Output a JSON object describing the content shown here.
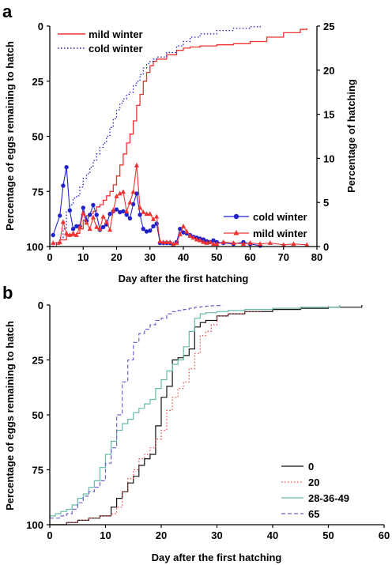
{
  "chart_data": [
    {
      "panel": "a",
      "type": "line",
      "xlabel": "Day after the first hatching",
      "ylabel": "Percentage of eggs remaining to hatch",
      "y2label": "Percentage of hatching",
      "xlim": [
        0,
        80
      ],
      "ylim": [
        100,
        0
      ],
      "y2lim": [
        0,
        25
      ],
      "xticks": [
        "0",
        "10",
        "20",
        "30",
        "40",
        "50",
        "60",
        "70",
        "80"
      ],
      "yticks": [
        "0",
        "25",
        "50",
        "75",
        "100"
      ],
      "y2ticks": [
        "0",
        "5",
        "10",
        "15",
        "20",
        "25"
      ],
      "legend_cumulative": [
        "mild winter",
        "cold winter"
      ],
      "legend_cumulative_position": "top-left",
      "legend_daily": [
        "cold winter",
        "mild winter"
      ],
      "legend_daily_position": "bottom-right",
      "colors": {
        "mild": "#ee3333",
        "cold": "#2222cc"
      },
      "series": [
        {
          "name": "mild winter",
          "kind": "step-cumulative",
          "axis": "left",
          "x": [
            0,
            1,
            2,
            3,
            4,
            5,
            6,
            7,
            8,
            9,
            10,
            11,
            12,
            13,
            14,
            15,
            16,
            17,
            18,
            19,
            20,
            21,
            22,
            23,
            24,
            25,
            26,
            27,
            28,
            29,
            30,
            31,
            32,
            35,
            38,
            40,
            42,
            45,
            50,
            55,
            60,
            65,
            70,
            75,
            77
          ],
          "y": [
            100,
            100,
            99,
            97,
            97,
            95,
            95,
            95,
            94,
            92,
            88,
            86,
            85,
            84,
            82,
            81,
            79,
            77,
            75,
            72,
            68,
            63,
            58,
            53,
            49,
            43,
            36,
            31,
            25,
            21,
            18,
            16,
            15,
            13,
            11,
            10,
            9.5,
            9,
            8.5,
            8,
            7,
            5,
            3,
            1.5,
            1
          ]
        },
        {
          "name": "cold winter",
          "kind": "step-cumulative",
          "axis": "left",
          "x": [
            0,
            1,
            2,
            3,
            4,
            5,
            6,
            7,
            8,
            9,
            10,
            11,
            12,
            13,
            14,
            15,
            16,
            17,
            18,
            19,
            20,
            21,
            22,
            23,
            24,
            25,
            26,
            27,
            28,
            29,
            30,
            31,
            32,
            35,
            38,
            40,
            42,
            45,
            50,
            55,
            60,
            63
          ],
          "y": [
            100,
            99,
            98,
            96,
            92,
            84,
            81,
            78,
            77,
            73,
            69,
            67,
            64,
            61,
            58,
            55,
            53,
            50,
            46,
            42,
            38,
            35,
            33,
            31,
            30,
            27,
            25,
            22,
            19,
            17,
            16,
            15,
            14,
            12,
            9,
            7,
            5,
            3.5,
            2,
            1,
            0.3,
            0
          ]
        },
        {
          "name": "cold winter",
          "kind": "daily-markers",
          "marker": "circle",
          "axis": "right",
          "x": [
            1,
            3,
            4,
            5,
            6,
            7,
            8,
            9,
            10,
            11,
            12,
            13,
            14,
            15,
            16,
            17,
            18,
            19,
            20,
            21,
            22,
            23,
            24,
            25,
            26,
            27,
            28,
            29,
            30,
            31,
            32,
            33,
            34,
            35,
            36,
            37,
            38,
            39,
            40,
            41,
            42,
            43,
            44,
            45,
            46,
            47,
            48,
            49,
            50,
            52,
            55,
            58,
            60,
            63
          ],
          "y": [
            1.3,
            3.5,
            6.9,
            9.0,
            4.1,
            2.0,
            2.3,
            2.3,
            4.4,
            2.9,
            3.6,
            4.7,
            3.6,
            1.9,
            2.2,
            2.5,
            3.7,
            4.0,
            4.2,
            3.9,
            4.0,
            3.6,
            3.2,
            4.8,
            6.0,
            3.6,
            2.0,
            1.7,
            1.8,
            2.3,
            2.6,
            0.4,
            0.4,
            0.4,
            0.4,
            0.2,
            0.5,
            2.0,
            1.6,
            1.5,
            1.3,
            1.1,
            1.0,
            0.9,
            0.8,
            0.6,
            0.5,
            0.7,
            0.5,
            0.4,
            0.3,
            0.5,
            0.3,
            0.1
          ]
        },
        {
          "name": "mild winter",
          "kind": "daily-markers",
          "marker": "triangle",
          "axis": "right",
          "x": [
            1,
            3,
            4,
            5,
            6,
            7,
            8,
            9,
            10,
            11,
            12,
            13,
            14,
            15,
            16,
            17,
            18,
            19,
            20,
            21,
            22,
            23,
            24,
            25,
            26,
            27,
            28,
            29,
            30,
            31,
            32,
            33,
            34,
            35,
            36,
            37,
            38,
            39,
            40,
            41,
            42,
            43,
            44,
            45,
            46,
            47,
            48,
            49,
            50,
            52,
            55,
            58,
            60,
            63,
            66,
            70,
            73,
            77
          ],
          "y": [
            0.4,
            0.5,
            2.8,
            1.5,
            1.3,
            1.5,
            1.3,
            2.2,
            3.8,
            2.7,
            2.0,
            3.3,
            2.2,
            2.0,
            3.4,
            2.8,
            1.9,
            4.1,
            5.7,
            6.0,
            6.2,
            4.0,
            5.0,
            6.2,
            9.2,
            4.4,
            3.9,
            3.7,
            3.7,
            3.1,
            3.4,
            0.6,
            0.5,
            0.5,
            0.5,
            0.3,
            0.4,
            1.4,
            2.3,
            1.7,
            1.2,
            1.0,
            0.8,
            0.7,
            0.5,
            0.4,
            0.5,
            0.3,
            0.3,
            0.5,
            0.4,
            0.3,
            0.4,
            0.3,
            0.4,
            0.2,
            0.3,
            0.2
          ]
        }
      ]
    },
    {
      "panel": "b",
      "type": "line",
      "xlabel": "Day after the first hatching",
      "ylabel": "Percentage of eggs remaining to hatch",
      "xlim": [
        0,
        60
      ],
      "ylim": [
        100,
        0
      ],
      "xticks": [
        "0",
        "10",
        "20",
        "30",
        "40",
        "50",
        "60"
      ],
      "yticks": [
        "0",
        "25",
        "50",
        "75",
        "100"
      ],
      "legend_position": "bottom-right",
      "series": [
        {
          "name": "0",
          "color": "#111111",
          "dash": "solid",
          "x": [
            0,
            3,
            5,
            7,
            9,
            11,
            12,
            13,
            14,
            15,
            16,
            17,
            18,
            19,
            20,
            21,
            22,
            23,
            24,
            25,
            26,
            27,
            28,
            30,
            32,
            35,
            40,
            45,
            50,
            56
          ],
          "y": [
            100,
            99,
            98,
            97,
            96,
            92,
            88,
            85,
            81,
            78,
            73,
            70,
            68,
            55,
            42,
            37,
            25,
            24,
            23,
            20,
            10,
            8,
            7,
            5,
            4,
            3,
            2,
            1.5,
            1,
            0
          ]
        },
        {
          "name": "20",
          "color": "#ee4444",
          "dash": "dotted",
          "x": [
            0,
            3,
            5,
            7,
            9,
            11,
            12,
            13,
            14,
            15,
            16,
            17,
            18,
            19,
            20,
            21,
            22,
            23,
            24,
            25,
            26,
            27,
            28,
            29,
            30,
            32,
            35,
            38,
            40,
            45,
            50
          ],
          "y": [
            100,
            99,
            98,
            97,
            96,
            95,
            92,
            85,
            79,
            75,
            70,
            68,
            65,
            61,
            57,
            48,
            42,
            38,
            35,
            29,
            22,
            14,
            12,
            9,
            5,
            4,
            3,
            2,
            1.5,
            1,
            0.5
          ]
        },
        {
          "name": "28-36-49",
          "color": "#66bbaa",
          "dash": "solid",
          "x": [
            0,
            1,
            2,
            3,
            4,
            5,
            6,
            7,
            8,
            9,
            10,
            11,
            12,
            13,
            14,
            15,
            16,
            17,
            18,
            19,
            20,
            21,
            22,
            23,
            24,
            25,
            26,
            27,
            28,
            30,
            32,
            35,
            40,
            45,
            52
          ],
          "y": [
            96,
            95,
            94,
            93,
            91,
            88,
            86,
            83,
            80,
            74,
            68,
            62,
            57,
            54,
            52,
            49,
            47,
            45,
            43,
            38,
            34,
            30,
            27,
            25,
            19,
            12,
            6,
            4,
            3.5,
            3,
            2.5,
            2,
            1.5,
            1,
            0
          ]
        },
        {
          "name": "65",
          "color": "#6666cc",
          "dash": "dashed",
          "x": [
            0,
            2,
            3,
            4,
            5,
            6,
            7,
            8,
            9,
            10,
            11,
            12,
            13,
            14,
            15,
            16,
            17,
            18,
            19,
            20,
            21,
            22,
            23,
            24,
            25,
            26,
            27,
            28,
            29,
            30,
            31
          ],
          "y": [
            97,
            96,
            95,
            93,
            90,
            87,
            85,
            83,
            80,
            72,
            65,
            50,
            35,
            25,
            17,
            13,
            11,
            9,
            7,
            6,
            4,
            3,
            2.5,
            2,
            1.5,
            1,
            0.8,
            0.5,
            0.3,
            0.2,
            0
          ]
        }
      ]
    }
  ]
}
